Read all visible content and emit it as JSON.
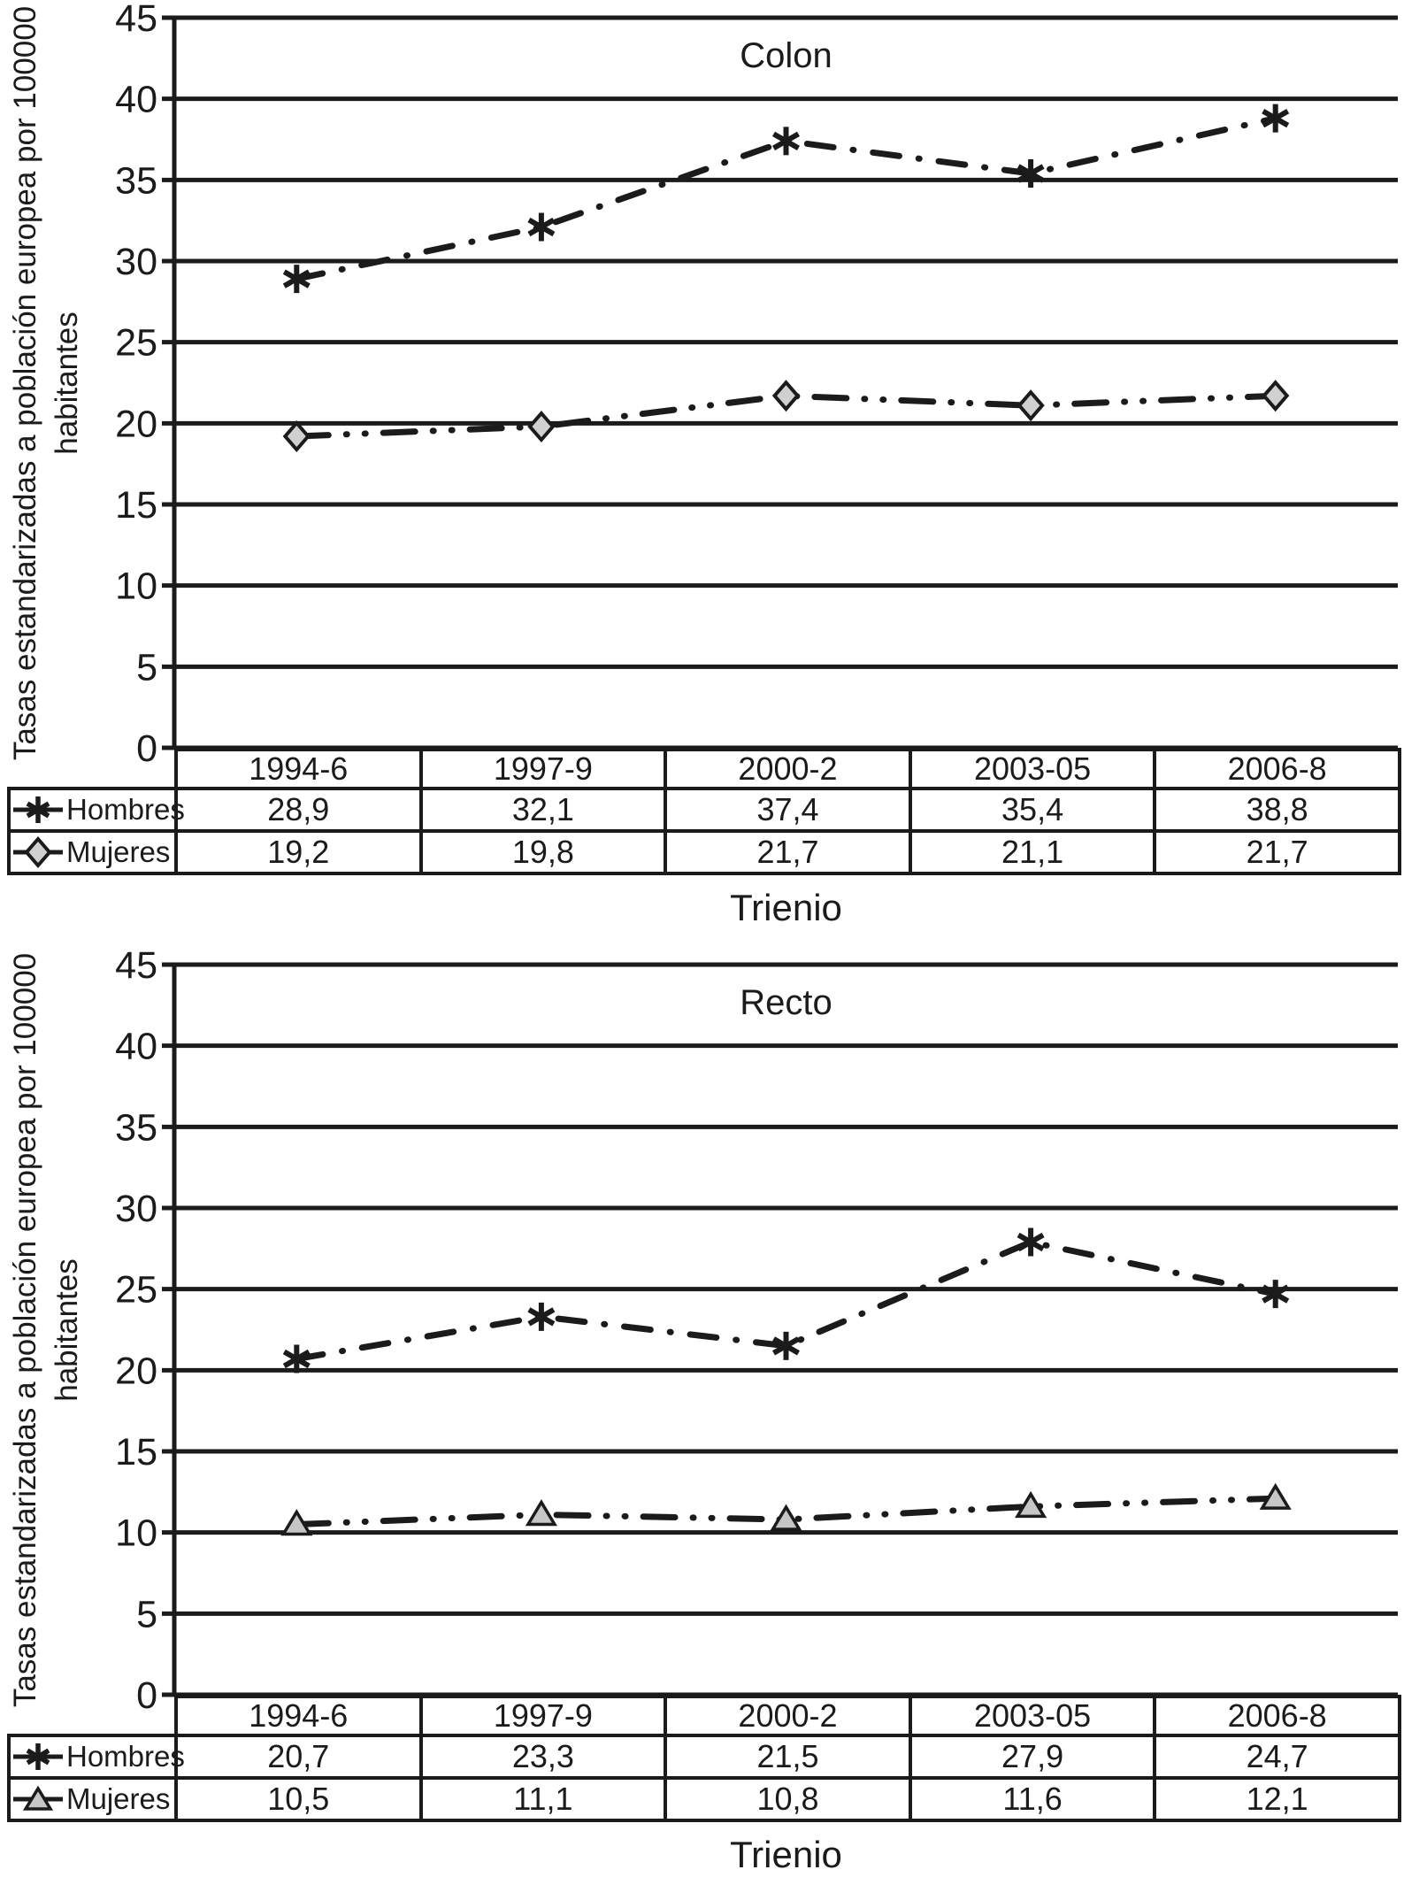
{
  "page": {
    "background": "#ffffff",
    "ink": "#1b1b1b"
  },
  "chart_data": [
    {
      "type": "line",
      "title": "Colon",
      "xlabel": "Trienio",
      "ylabel": "Tasas estandarizadas a población europea por 100000 habitantes",
      "ylabel_lines": [
        "Tasas estandarizadas a población europea por 100000",
        "habitantes"
      ],
      "categories": [
        "1994-6",
        "1997-9",
        "2000-2",
        "2003-05",
        "2006-8"
      ],
      "series": [
        {
          "name": "Hombres",
          "marker": "asterisk",
          "marker_fill": "#1b1b1b",
          "line_style": "dash-dot",
          "values": [
            28.9,
            32.1,
            37.4,
            35.4,
            38.8
          ],
          "display": [
            "28,9",
            "32,1",
            "37,4",
            "35,4",
            "38,8"
          ]
        },
        {
          "name": "Mujeres",
          "marker": "diamond",
          "marker_fill": "#d0d0d0",
          "line_style": "dash-dot-dot",
          "values": [
            19.2,
            19.8,
            21.7,
            21.1,
            21.7
          ],
          "display": [
            "19,2",
            "19,8",
            "21,7",
            "21,1",
            "21,7"
          ]
        }
      ],
      "ylim": [
        0,
        45
      ],
      "y_tick_step": 5,
      "y_ticks": [
        0,
        5,
        10,
        15,
        20,
        25,
        30,
        35,
        40,
        45
      ],
      "grid": "horizontal",
      "legend_position": "table-left"
    },
    {
      "type": "line",
      "title": "Recto",
      "xlabel": "Trienio",
      "ylabel": "Tasas estandarizadas a población europea por 100000 habitantes",
      "ylabel_lines": [
        "Tasas estandarizadas a población europea por 100000",
        "habitantes"
      ],
      "categories": [
        "1994-6",
        "1997-9",
        "2000-2",
        "2003-05",
        "2006-8"
      ],
      "series": [
        {
          "name": "Hombres",
          "marker": "asterisk",
          "marker_fill": "#1b1b1b",
          "line_style": "dash-dot",
          "values": [
            20.7,
            23.3,
            21.5,
            27.9,
            24.7
          ],
          "display": [
            "20,7",
            "23,3",
            "21,5",
            "27,9",
            "24,7"
          ]
        },
        {
          "name": "Mujeres",
          "marker": "triangle",
          "marker_fill": "#c6c6c6",
          "line_style": "dash-dot-dot",
          "values": [
            10.5,
            11.1,
            10.8,
            11.6,
            12.1
          ],
          "display": [
            "10,5",
            "11,1",
            "10,8",
            "11,6",
            "12,1"
          ]
        }
      ],
      "ylim": [
        0,
        45
      ],
      "y_tick_step": 5,
      "y_ticks": [
        0,
        5,
        10,
        15,
        20,
        25,
        30,
        35,
        40,
        45
      ],
      "grid": "horizontal",
      "legend_position": "table-left"
    }
  ]
}
